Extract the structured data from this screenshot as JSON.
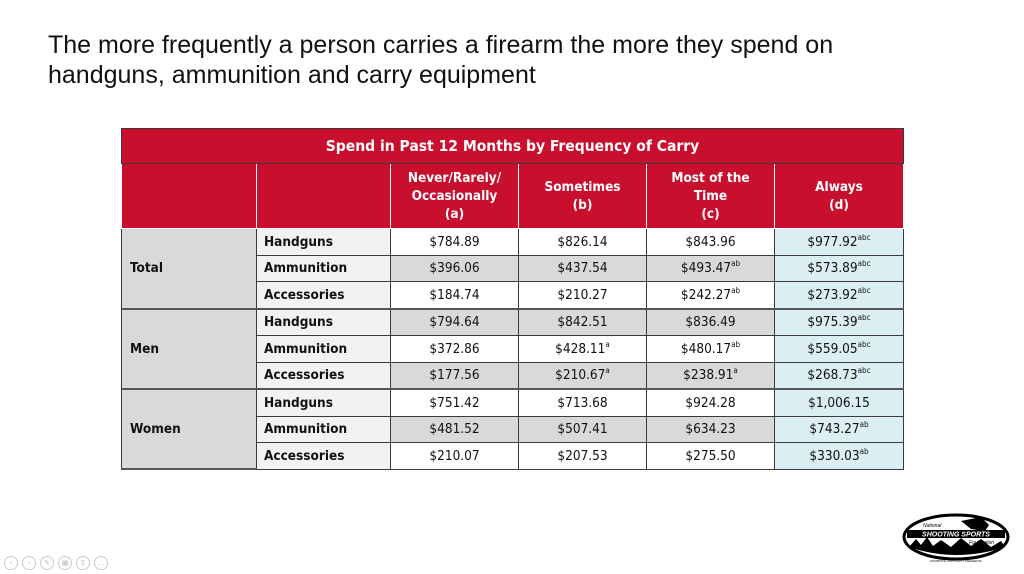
{
  "slide_title": "The more frequently a person carries a firearm the more they spend on handguns, ammunition and carry equipment",
  "table": {
    "caption": "Spend in Past 12 Months by Frequency of Carry",
    "columns": [
      {
        "lines": [
          "Never/Rarely/",
          "Occasionally",
          "(a)"
        ]
      },
      {
        "lines": [
          "Sometimes",
          "(b)"
        ]
      },
      {
        "lines": [
          "Most of the",
          "Time",
          "(c)"
        ]
      },
      {
        "lines": [
          "Always",
          "(d)"
        ]
      }
    ],
    "groups": [
      {
        "name": "Total",
        "rows": [
          {
            "label": "Handguns",
            "cells": [
              {
                "v": "$784.89",
                "s": ""
              },
              {
                "v": "$826.14",
                "s": ""
              },
              {
                "v": "$843.96",
                "s": ""
              },
              {
                "v": "$977.92",
                "s": "abc"
              }
            ]
          },
          {
            "label": "Ammunition",
            "cells": [
              {
                "v": "$396.06",
                "s": ""
              },
              {
                "v": "$437.54",
                "s": ""
              },
              {
                "v": "$493.47",
                "s": "ab"
              },
              {
                "v": "$573.89",
                "s": "abc"
              }
            ]
          },
          {
            "label": "Accessories",
            "cells": [
              {
                "v": "$184.74",
                "s": ""
              },
              {
                "v": "$210.27",
                "s": ""
              },
              {
                "v": "$242.27",
                "s": "ab"
              },
              {
                "v": "$273.92",
                "s": "abc"
              }
            ]
          }
        ]
      },
      {
        "name": "Men",
        "rows": [
          {
            "label": "Handguns",
            "cells": [
              {
                "v": "$794.64",
                "s": ""
              },
              {
                "v": "$842.51",
                "s": ""
              },
              {
                "v": "$836.49",
                "s": ""
              },
              {
                "v": "$975.39",
                "s": "abc"
              }
            ]
          },
          {
            "label": "Ammunition",
            "cells": [
              {
                "v": "$372.86",
                "s": ""
              },
              {
                "v": "$428.11",
                "s": "a"
              },
              {
                "v": "$480.17",
                "s": "ab"
              },
              {
                "v": "$559.05",
                "s": "abc"
              }
            ]
          },
          {
            "label": "Accessories",
            "cells": [
              {
                "v": "$177.56",
                "s": ""
              },
              {
                "v": "$210.67",
                "s": "a"
              },
              {
                "v": "$238.91",
                "s": "a"
              },
              {
                "v": "$268.73",
                "s": "abc"
              }
            ]
          }
        ]
      },
      {
        "name": "Women",
        "rows": [
          {
            "label": "Handguns",
            "cells": [
              {
                "v": "$751.42",
                "s": ""
              },
              {
                "v": "$713.68",
                "s": ""
              },
              {
                "v": "$924.28",
                "s": ""
              },
              {
                "v": "$1,006.15",
                "s": ""
              }
            ]
          },
          {
            "label": "Ammunition",
            "cells": [
              {
                "v": "$481.52",
                "s": ""
              },
              {
                "v": "$507.41",
                "s": ""
              },
              {
                "v": "$634.23",
                "s": ""
              },
              {
                "v": "$743.27",
                "s": "ab"
              }
            ]
          },
          {
            "label": "Accessories",
            "cells": [
              {
                "v": "$210.07",
                "s": ""
              },
              {
                "v": "$207.53",
                "s": ""
              },
              {
                "v": "$275.50",
                "s": ""
              },
              {
                "v": "$330.03",
                "s": "ab"
              }
            ]
          }
        ]
      }
    ]
  },
  "logo": {
    "top": "National",
    "main": "SHOOTING SPORTS",
    "bottom": "Foundation",
    "motto": "PROMOTE • PROTECT • PRESERVE"
  },
  "toolbar": [
    {
      "icon": "previous-icon",
      "glyph": "‹"
    },
    {
      "icon": "next-icon",
      "glyph": "›"
    },
    {
      "icon": "pen-icon",
      "glyph": "✎"
    },
    {
      "icon": "slides-icon",
      "glyph": "▦"
    },
    {
      "icon": "zoom-icon",
      "glyph": "⚲"
    },
    {
      "icon": "more-icon",
      "glyph": "…"
    }
  ],
  "colors": {
    "header_red": "#c8102e",
    "always_blue": "#dbeef4",
    "gray": "#d9d9d9"
  }
}
